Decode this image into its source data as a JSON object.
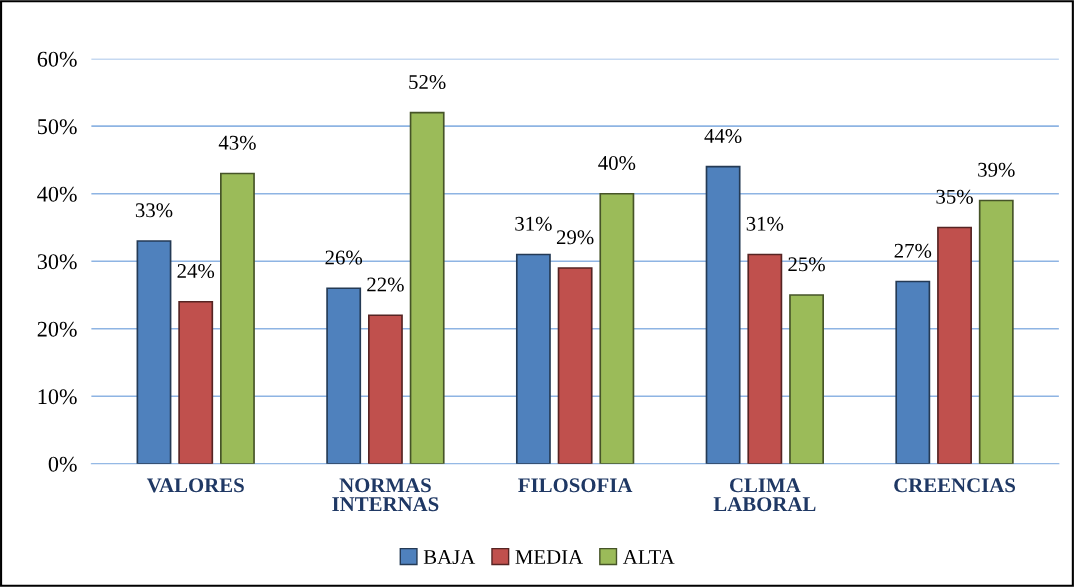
{
  "chart_data": {
    "type": "bar",
    "categories": [
      "VALORES",
      "NORMAS\nINTERNAS",
      "FILOSOFIA",
      "CLIMA\nLABORAL",
      "CREENCIAS"
    ],
    "series": [
      {
        "name": "BAJA",
        "color": "#4f81bd",
        "values": [
          33,
          26,
          31,
          44,
          27
        ],
        "value_labels": [
          "33%",
          "26%",
          "31%",
          "44%",
          "27%"
        ]
      },
      {
        "name": "MEDIA",
        "color": "#c0504d",
        "values": [
          24,
          22,
          29,
          31,
          35
        ],
        "value_labels": [
          "24%",
          "22%",
          "29%",
          "31%",
          "35%"
        ]
      },
      {
        "name": "ALTA",
        "color": "#9bbb59",
        "values": [
          43,
          52,
          40,
          25,
          39
        ],
        "value_labels": [
          "43%",
          "52%",
          "40%",
          "25%",
          "39%"
        ]
      }
    ],
    "ylim": [
      0,
      60
    ],
    "yticks": [
      {
        "value": 0,
        "label": "0%"
      },
      {
        "value": 10,
        "label": "10%"
      },
      {
        "value": 20,
        "label": "20%"
      },
      {
        "value": 30,
        "label": "30%"
      },
      {
        "value": 40,
        "label": "40%"
      },
      {
        "value": 50,
        "label": "50%"
      },
      {
        "value": 60,
        "label": "60%"
      }
    ],
    "grid": "y",
    "legend": "bottom"
  }
}
